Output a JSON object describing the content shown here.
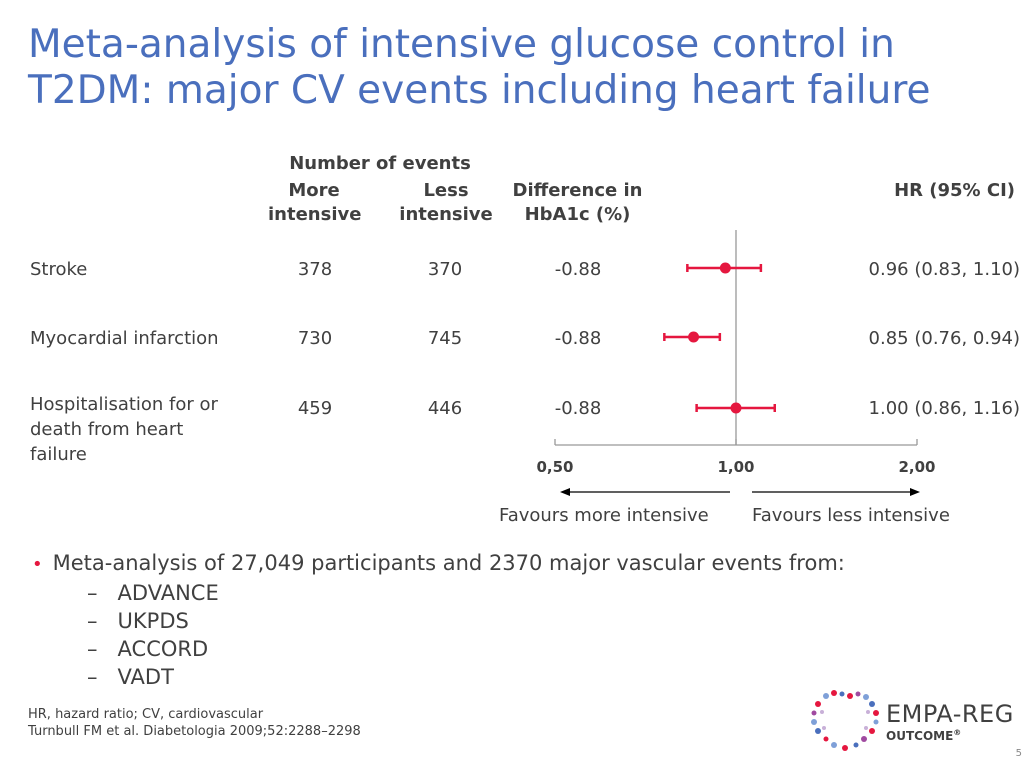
{
  "title": "Meta-analysis of intensive glucose control in T2DM: major CV events including heart failure",
  "table": {
    "header_number_events": "Number of events",
    "header_more": "More intensive",
    "header_less": "Less intensive",
    "header_diff": "Difference in HbA1c (%)",
    "header_hr": "HR (95% CI)",
    "rows": [
      {
        "label": "Stroke",
        "more": "378",
        "less": "370",
        "diff": "-0.88",
        "hr_text": "0.96 (0.83, 1.10)"
      },
      {
        "label": "Myocardial infarction",
        "more": "730",
        "less": "745",
        "diff": "-0.88",
        "hr_text": "0.85 (0.76, 0.94)"
      },
      {
        "label": "Hospitalisation for or death from heart failure",
        "more": "459",
        "less": "446",
        "diff": "-0.88",
        "hr_text": "1.00 (0.86, 1.16)"
      }
    ]
  },
  "chart_data": {
    "type": "forest",
    "scale": "log",
    "xlim": [
      0.5,
      2.0
    ],
    "reference": 1.0,
    "ticks": [
      "0,50",
      "1,00",
      "2,00"
    ],
    "points": [
      {
        "label": "Stroke",
        "hr": 0.96,
        "lo": 0.83,
        "hi": 1.1
      },
      {
        "label": "Myocardial infarction",
        "hr": 0.85,
        "lo": 0.76,
        "hi": 0.94
      },
      {
        "label": "Hospitalisation for or death from heart failure",
        "hr": 1.0,
        "lo": 0.86,
        "hi": 1.16
      }
    ],
    "favours_left": "Favours more intensive",
    "favours_right": "Favours less intensive",
    "marker_color": "#e5173f"
  },
  "bullets": {
    "main": "Meta-analysis of 27,049 participants and 2370 major vascular events from:",
    "subs": [
      "ADVANCE",
      "UKPDS",
      "ACCORD",
      "VADT"
    ]
  },
  "footer": {
    "abbrev": "HR, hazard ratio; CV, cardiovascular",
    "ref": "Turnbull FM et al. Diabetologia 2009;52:2288–2298"
  },
  "logo": {
    "line1": "EMPA-REG",
    "line2": "OUTCOME",
    "mark": "®"
  },
  "page_number": "5",
  "colors": {
    "title": "#4a6fbd",
    "accent": "#e5173f",
    "text": "#404040"
  }
}
